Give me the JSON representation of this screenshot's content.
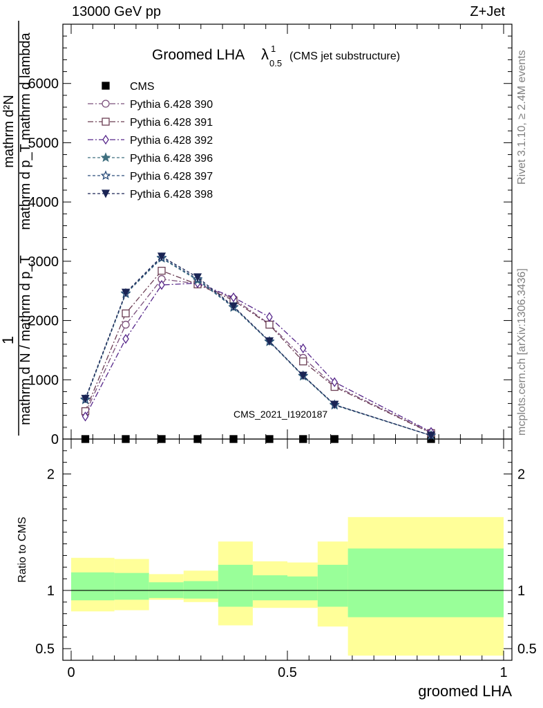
{
  "header": {
    "left": "13000 GeV pp",
    "right": "Z+Jet"
  },
  "side_labels": {
    "rivet": "Rivet 3.1.10, ≥ 2.4M events",
    "mcplots": "mcplots.cern.ch [arXiv:1306.3436]"
  },
  "watermark": "CMS_2021_I1920187",
  "colors": {
    "band_inner": "#99ff99",
    "band_outer": "#ffff99",
    "frame": "#000000"
  },
  "chart_data": [
    {
      "type": "line",
      "panel": "main",
      "title": "Groomed LHA",
      "title_symbol": "λ",
      "title_sup": "1",
      "title_sub": "0.5",
      "subtitle": "(CMS jet substructure)",
      "ylabel_numerator": "mathrm d²N",
      "ylabel_denominator": "mathrm d p_T mathrm d lambda",
      "ylabel_prefix_num": "1",
      "ylabel_prefix_den": "mathrm d N / mathrm d p_T",
      "xlabel": "groomed LHA",
      "xlim": [
        0,
        1
      ],
      "ylim": [
        0,
        7000
      ],
      "y_ticks": [
        0,
        1000,
        2000,
        3000,
        4000,
        5000,
        6000
      ],
      "y_tick_labels": [
        "0",
        "1000",
        "2000",
        "3000",
        "4000",
        "5000",
        "6000"
      ],
      "legend_position": "top-left",
      "x": [
        0.05,
        0.14,
        0.22,
        0.3,
        0.38,
        0.46,
        0.535,
        0.605,
        0.82
      ],
      "series": [
        {
          "name": "CMS",
          "color": "#000000",
          "marker": "square-filled",
          "dash": "",
          "values": [
            0,
            0,
            0,
            0,
            0,
            0,
            0,
            0,
            0
          ]
        },
        {
          "name": "Pythia 6.428 390",
          "color": "#7a4e7a",
          "marker": "circle-open",
          "dash": "8,3,2,3",
          "values": [
            430,
            1930,
            2700,
            2620,
            2370,
            1940,
            1370,
            900,
            110
          ]
        },
        {
          "name": "Pythia 6.428 391",
          "color": "#6a3c52",
          "marker": "square-open",
          "dash": "8,3,2,3",
          "values": [
            470,
            2120,
            2840,
            2610,
            2340,
            1930,
            1310,
            880,
            100
          ]
        },
        {
          "name": "Pythia 6.428 392",
          "color": "#56268a",
          "marker": "diamond-open",
          "dash": "8,3,2,3",
          "values": [
            380,
            1690,
            2600,
            2630,
            2390,
            2060,
            1530,
            960,
            120
          ]
        },
        {
          "name": "Pythia 6.428 396",
          "color": "#3f6f7f",
          "marker": "star-filled",
          "dash": "4,3",
          "values": [
            660,
            2450,
            3050,
            2680,
            2220,
            1640,
            1060,
            570,
            60
          ]
        },
        {
          "name": "Pythia 6.428 397",
          "color": "#2a4d7a",
          "marker": "star-open",
          "dash": "4,3",
          "values": [
            670,
            2460,
            3060,
            2700,
            2230,
            1650,
            1070,
            580,
            60
          ]
        },
        {
          "name": "Pythia 6.428 398",
          "color": "#1a2454",
          "marker": "triangle-down-filled",
          "dash": "4,3",
          "values": [
            680,
            2470,
            3080,
            2730,
            2240,
            1650,
            1070,
            580,
            60
          ]
        }
      ]
    },
    {
      "type": "area",
      "panel": "ratio",
      "ylabel": "Ratio to CMS",
      "xlabel": "groomed LHA",
      "xlim": [
        0,
        1
      ],
      "ylim": [
        0.4,
        2.3
      ],
      "y_ticks": [
        0.5,
        1,
        2
      ],
      "y_tick_labels": [
        "0.5",
        "1",
        "2"
      ],
      "x_ticks": [
        0,
        0.5,
        1
      ],
      "x_tick_labels": [
        "0",
        "0.5",
        "1"
      ],
      "bins": [
        {
          "x0": 0.0,
          "x1": 0.1,
          "inner": [
            0.915,
            1.155
          ],
          "outer": [
            0.82,
            1.28
          ]
        },
        {
          "x0": 0.1,
          "x1": 0.18,
          "inner": [
            0.92,
            1.15
          ],
          "outer": [
            0.83,
            1.27
          ]
        },
        {
          "x0": 0.18,
          "x1": 0.26,
          "inner": [
            0.935,
            1.07
          ],
          "outer": [
            0.92,
            1.14
          ]
        },
        {
          "x0": 0.26,
          "x1": 0.34,
          "inner": [
            0.93,
            1.08
          ],
          "outer": [
            0.9,
            1.17
          ]
        },
        {
          "x0": 0.34,
          "x1": 0.42,
          "inner": [
            0.86,
            1.22
          ],
          "outer": [
            0.7,
            1.42
          ]
        },
        {
          "x0": 0.42,
          "x1": 0.5,
          "inner": [
            0.915,
            1.13
          ],
          "outer": [
            0.85,
            1.25
          ]
        },
        {
          "x0": 0.5,
          "x1": 0.57,
          "inner": [
            0.915,
            1.12
          ],
          "outer": [
            0.85,
            1.24
          ]
        },
        {
          "x0": 0.57,
          "x1": 0.64,
          "inner": [
            0.86,
            1.22
          ],
          "outer": [
            0.69,
            1.42
          ]
        },
        {
          "x0": 0.64,
          "x1": 1.0,
          "inner": [
            0.77,
            1.36
          ],
          "outer": [
            0.44,
            1.63
          ]
        }
      ]
    }
  ]
}
